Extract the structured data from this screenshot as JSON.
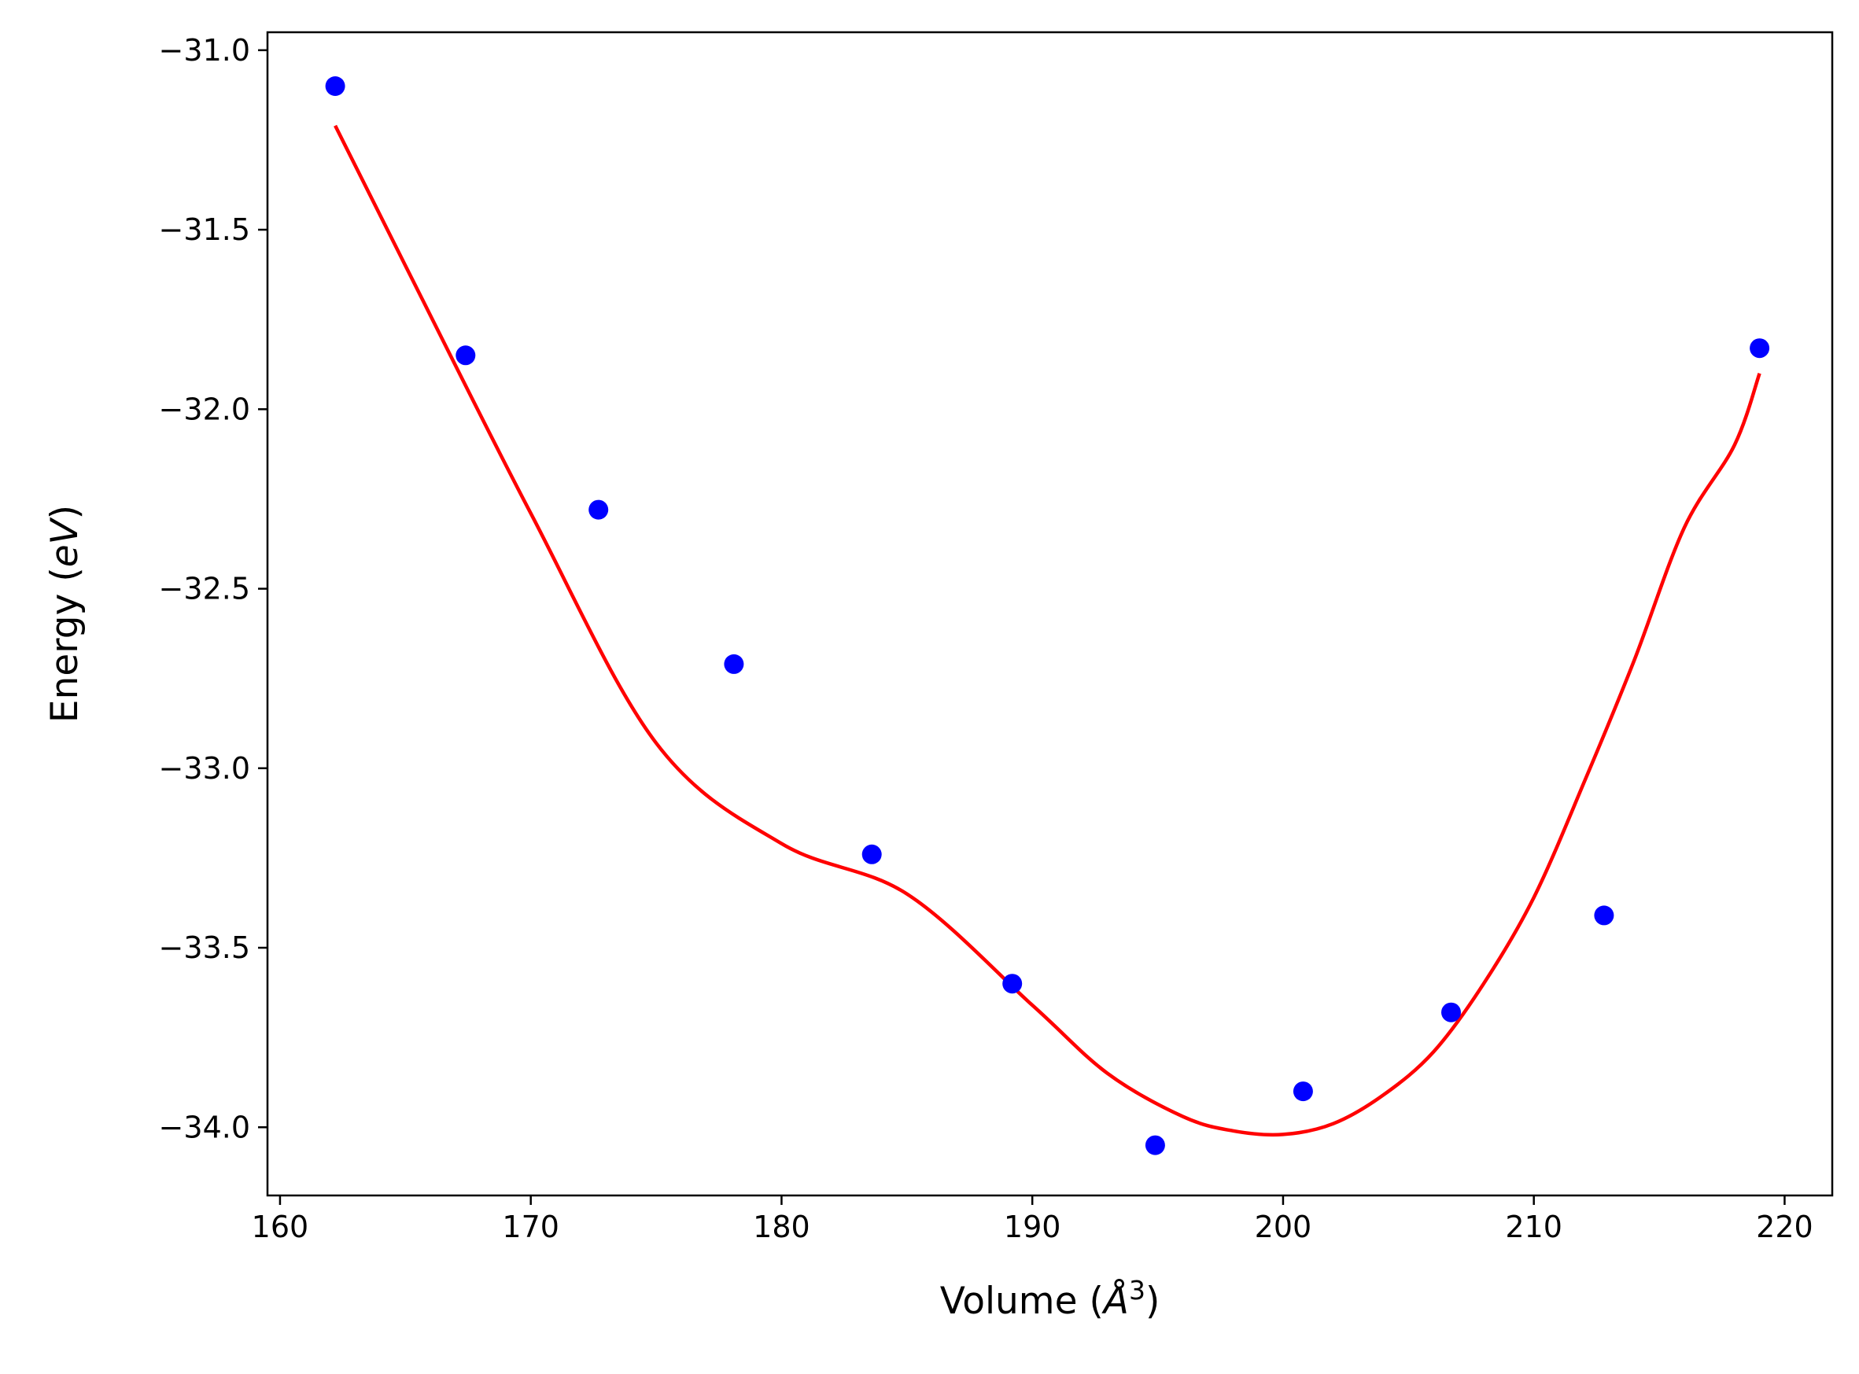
{
  "chart_data": {
    "type": "scatter",
    "xlabel": "Volume (Å³)",
    "xlabel_parts": {
      "base": "Volume (",
      "symbol": "Å",
      "sup": "3",
      "close": ")"
    },
    "ylabel": "Energy (eV)",
    "ylabel_parts": {
      "base": "Energy (",
      "unit": "eV",
      "close": ")"
    },
    "xlim": [
      159.5,
      221.9
    ],
    "ylim": [
      -34.19,
      -30.95
    ],
    "xticks": [
      160,
      170,
      180,
      190,
      200,
      210,
      220
    ],
    "xtick_labels": [
      "160",
      "170",
      "180",
      "190",
      "200",
      "210",
      "220"
    ],
    "yticks": [
      -31.0,
      -31.5,
      -32.0,
      -32.5,
      -33.0,
      -33.5,
      -34.0
    ],
    "ytick_labels": [
      "−31.0",
      "−31.5",
      "−32.0",
      "−32.5",
      "−33.0",
      "−33.5",
      "−34.0"
    ],
    "grid": false,
    "series": [
      {
        "kind": "points",
        "color": "#0000ff",
        "x": [
          162.2,
          167.4,
          172.7,
          178.1,
          183.6,
          189.2,
          194.9,
          200.8,
          206.7,
          212.8,
          219.0
        ],
        "y": [
          -31.1,
          -31.85,
          -32.28,
          -32.71,
          -33.24,
          -33.6,
          -34.05,
          -33.9,
          -33.68,
          -33.41,
          -31.83
        ]
      },
      {
        "kind": "fit-line",
        "color": "#ff0000",
        "x": [
          162.2,
          165,
          170,
          175,
          180,
          185,
          190,
          193,
          196,
          198,
          200,
          202,
          204,
          206,
          208,
          210,
          212,
          214,
          216,
          218,
          219.0
        ],
        "y": [
          -31.21,
          -31.6,
          -32.29,
          -32.93,
          -33.21,
          -33.35,
          -33.66,
          -33.85,
          -33.97,
          -34.01,
          -34.02,
          -33.99,
          -33.91,
          -33.79,
          -33.6,
          -33.36,
          -33.04,
          -32.7,
          -32.33,
          -32.1,
          -31.9
        ]
      }
    ]
  }
}
